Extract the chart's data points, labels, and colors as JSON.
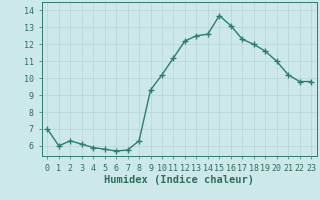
{
  "x": [
    0,
    1,
    2,
    3,
    4,
    5,
    6,
    7,
    8,
    9,
    10,
    11,
    12,
    13,
    14,
    15,
    16,
    17,
    18,
    19,
    20,
    21,
    22,
    23
  ],
  "y": [
    7.0,
    6.0,
    6.3,
    6.1,
    5.9,
    5.8,
    5.7,
    5.75,
    6.3,
    9.3,
    10.2,
    11.2,
    12.2,
    12.5,
    12.6,
    13.7,
    13.1,
    12.3,
    12.0,
    11.6,
    11.0,
    10.2,
    9.8,
    9.8
  ],
  "line_color": "#2e7d6e",
  "marker": "+",
  "markersize": 4,
  "markeredgewidth": 1.0,
  "linewidth": 1.0,
  "bg_color": "#cce8e8",
  "grid_color_major": "#b8d4d4",
  "grid_color_minor": "#c8e0e0",
  "xlabel": "Humidex (Indice chaleur)",
  "xlabel_fontsize": 7.5,
  "tick_fontsize": 6.0,
  "xlim": [
    -0.5,
    23.5
  ],
  "ylim": [
    5.4,
    14.5
  ],
  "yticks": [
    6,
    7,
    8,
    9,
    10,
    11,
    12,
    13,
    14
  ],
  "xticks": [
    0,
    1,
    2,
    3,
    4,
    5,
    6,
    7,
    8,
    9,
    10,
    11,
    12,
    13,
    14,
    15,
    16,
    17,
    18,
    19,
    20,
    21,
    22,
    23
  ],
  "tick_color": "#2e6e60",
  "spine_color": "#2e7d6e"
}
